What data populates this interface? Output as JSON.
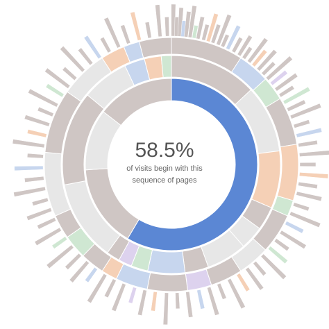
{
  "chart_data": {
    "type": "sunburst",
    "center_label": {
      "percentage": "58.5%",
      "line1": "of visits begin with this",
      "line2": "sequence of pages"
    },
    "highlighted_path_value": 58.5,
    "colors": {
      "highlight": "#5b87d4",
      "default": "#cfc6c4",
      "light_ring": "#e7e7e7",
      "blue": "#c7d6ee",
      "peach": "#f5d0b6",
      "green": "#cfe7d2",
      "purple": "#ddd2ee",
      "gray": "#dadada"
    },
    "rings": [
      {
        "depth": 1,
        "segments": [
          {
            "value": 58.5,
            "color": "highlight"
          },
          {
            "value": 15.5,
            "color": "default"
          },
          {
            "value": 11.5,
            "color": "light_ring"
          },
          {
            "value": 14.5,
            "color": "default"
          }
        ]
      },
      {
        "depth": 2,
        "segments": [
          {
            "value": 13,
            "color": "default"
          },
          {
            "value": 10,
            "color": "light_ring"
          },
          {
            "value": 8.5,
            "color": "peach"
          },
          {
            "value": 3.5,
            "color": "default"
          },
          {
            "value": 3.5,
            "color": "light_ring"
          },
          {
            "value": 6,
            "color": "light_ring"
          },
          {
            "value": 3.5,
            "color": "default"
          },
          {
            "value": 5.5,
            "color": "blue"
          },
          {
            "value": 2.5,
            "color": "green"
          },
          {
            "value": 2,
            "color": "purple"
          },
          {
            "value": 2,
            "color": "default"
          },
          {
            "value": 12,
            "color": "light_ring"
          },
          {
            "value": 14,
            "color": "default"
          },
          {
            "value": 7,
            "color": "light_ring"
          },
          {
            "value": 3,
            "color": "blue"
          },
          {
            "value": 2.5,
            "color": "peach"
          },
          {
            "value": 1.5,
            "color": "green"
          }
        ]
      },
      {
        "depth": 3,
        "segments": [
          {
            "value": 9,
            "color": "default"
          },
          {
            "value": 4,
            "color": "blue"
          },
          {
            "value": 3,
            "color": "green"
          },
          {
            "value": 6,
            "color": "default"
          },
          {
            "value": 7,
            "color": "peach"
          },
          {
            "value": 2,
            "color": "green"
          },
          {
            "value": 5,
            "color": "default"
          },
          {
            "value": 4,
            "color": "light_ring"
          },
          {
            "value": 4,
            "color": "default"
          },
          {
            "value": 3,
            "color": "purple"
          },
          {
            "value": 5,
            "color": "default"
          },
          {
            "value": 4,
            "color": "blue"
          },
          {
            "value": 2,
            "color": "peach"
          },
          {
            "value": 3,
            "color": "default"
          },
          {
            "value": 3,
            "color": "green"
          },
          {
            "value": 3,
            "color": "default"
          },
          {
            "value": 8,
            "color": "light_ring"
          },
          {
            "value": 8,
            "color": "default"
          },
          {
            "value": 6,
            "color": "light_ring"
          },
          {
            "value": 3,
            "color": "peach"
          },
          {
            "value": 2,
            "color": "blue"
          },
          {
            "value": 4,
            "color": "default"
          }
        ]
      }
    ],
    "outer_spikes": [
      {
        "pos": 0.2,
        "len": 1.0,
        "color": "default"
      },
      {
        "pos": 0.6,
        "len": 0.6,
        "color": "default"
      },
      {
        "pos": 1.0,
        "len": 0.9,
        "color": "default"
      },
      {
        "pos": 1.4,
        "len": 0.5,
        "color": "blue"
      },
      {
        "pos": 1.8,
        "len": 0.8,
        "color": "default"
      },
      {
        "pos": 2.3,
        "len": 1.0,
        "color": "default"
      },
      {
        "pos": 2.8,
        "len": 0.4,
        "color": "green"
      },
      {
        "pos": 3.3,
        "len": 0.7,
        "color": "default"
      },
      {
        "pos": 4.0,
        "len": 0.5,
        "color": "default"
      },
      {
        "pos": 4.6,
        "len": 0.9,
        "color": "peach"
      },
      {
        "pos": 5.2,
        "len": 0.6,
        "color": "default"
      },
      {
        "pos": 5.9,
        "len": 1.0,
        "color": "default"
      },
      {
        "pos": 6.5,
        "len": 0.4,
        "color": "default"
      },
      {
        "pos": 7.2,
        "len": 0.8,
        "color": "blue"
      },
      {
        "pos": 8.0,
        "len": 0.5,
        "color": "default"
      },
      {
        "pos": 8.8,
        "len": 0.7,
        "color": "default"
      },
      {
        "pos": 9.5,
        "len": 0.4,
        "color": "default"
      },
      {
        "pos": 10.3,
        "len": 0.9,
        "color": "default"
      },
      {
        "pos": 11.0,
        "len": 0.6,
        "color": "peach"
      },
      {
        "pos": 11.8,
        "len": 0.8,
        "color": "default"
      },
      {
        "pos": 12.6,
        "len": 0.5,
        "color": "default"
      },
      {
        "pos": 13.4,
        "len": 1.0,
        "color": "default"
      },
      {
        "pos": 14.2,
        "len": 0.6,
        "color": "purple"
      },
      {
        "pos": 15.1,
        "len": 0.8,
        "color": "default"
      },
      {
        "pos": 16.0,
        "len": 0.5,
        "color": "default"
      },
      {
        "pos": 17.0,
        "len": 0.9,
        "color": "green"
      },
      {
        "pos": 18.0,
        "len": 0.6,
        "color": "default"
      },
      {
        "pos": 19.0,
        "len": 1.0,
        "color": "default"
      },
      {
        "pos": 20.2,
        "len": 0.5,
        "color": "default"
      },
      {
        "pos": 21.4,
        "len": 0.8,
        "color": "blue"
      },
      {
        "pos": 22.6,
        "len": 0.6,
        "color": "default"
      },
      {
        "pos": 23.8,
        "len": 1.0,
        "color": "default"
      },
      {
        "pos": 25.0,
        "len": 0.5,
        "color": "default"
      },
      {
        "pos": 26.2,
        "len": 0.9,
        "color": "peach"
      },
      {
        "pos": 27.4,
        "len": 0.6,
        "color": "default"
      },
      {
        "pos": 28.6,
        "len": 0.8,
        "color": "default"
      },
      {
        "pos": 30.0,
        "len": 0.5,
        "color": "default"
      },
      {
        "pos": 31.2,
        "len": 1.0,
        "color": "default"
      },
      {
        "pos": 32.5,
        "len": 0.6,
        "color": "blue"
      },
      {
        "pos": 33.8,
        "len": 0.9,
        "color": "default"
      },
      {
        "pos": 35.0,
        "len": 0.5,
        "color": "default"
      },
      {
        "pos": 36.2,
        "len": 0.7,
        "color": "green"
      },
      {
        "pos": 37.5,
        "len": 1.0,
        "color": "default"
      },
      {
        "pos": 38.8,
        "len": 0.5,
        "color": "default"
      },
      {
        "pos": 40.0,
        "len": 0.8,
        "color": "default"
      },
      {
        "pos": 41.3,
        "len": 0.6,
        "color": "peach"
      },
      {
        "pos": 42.6,
        "len": 1.0,
        "color": "default"
      },
      {
        "pos": 44.0,
        "len": 0.5,
        "color": "default"
      },
      {
        "pos": 45.3,
        "len": 0.9,
        "color": "default"
      },
      {
        "pos": 46.6,
        "len": 0.6,
        "color": "blue"
      },
      {
        "pos": 48.0,
        "len": 0.8,
        "color": "default"
      },
      {
        "pos": 49.3,
        "len": 0.5,
        "color": "default"
      },
      {
        "pos": 50.6,
        "len": 1.0,
        "color": "default"
      },
      {
        "pos": 52.0,
        "len": 0.6,
        "color": "peach"
      },
      {
        "pos": 53.3,
        "len": 0.8,
        "color": "default"
      },
      {
        "pos": 54.6,
        "len": 0.5,
        "color": "purple"
      },
      {
        "pos": 56.0,
        "len": 0.9,
        "color": "default"
      },
      {
        "pos": 57.3,
        "len": 0.6,
        "color": "default"
      },
      {
        "pos": 58.6,
        "len": 1.0,
        "color": "default"
      },
      {
        "pos": 60.0,
        "len": 0.5,
        "color": "blue"
      },
      {
        "pos": 61.3,
        "len": 0.8,
        "color": "default"
      },
      {
        "pos": 62.6,
        "len": 0.6,
        "color": "default"
      },
      {
        "pos": 64.0,
        "len": 1.0,
        "color": "default"
      },
      {
        "pos": 65.3,
        "len": 0.5,
        "color": "green"
      },
      {
        "pos": 66.6,
        "len": 0.9,
        "color": "default"
      },
      {
        "pos": 68.0,
        "len": 0.6,
        "color": "default"
      },
      {
        "pos": 69.3,
        "len": 0.8,
        "color": "default"
      },
      {
        "pos": 70.6,
        "len": 0.5,
        "color": "default"
      },
      {
        "pos": 72.0,
        "len": 1.0,
        "color": "default"
      },
      {
        "pos": 73.3,
        "len": 0.6,
        "color": "default"
      },
      {
        "pos": 74.6,
        "len": 0.9,
        "color": "blue"
      },
      {
        "pos": 76.0,
        "len": 0.5,
        "color": "default"
      },
      {
        "pos": 77.3,
        "len": 1.0,
        "color": "default"
      },
      {
        "pos": 78.6,
        "len": 0.6,
        "color": "peach"
      },
      {
        "pos": 80.0,
        "len": 0.8,
        "color": "default"
      },
      {
        "pos": 81.3,
        "len": 0.5,
        "color": "default"
      },
      {
        "pos": 82.6,
        "len": 1.0,
        "color": "default"
      },
      {
        "pos": 84.0,
        "len": 0.6,
        "color": "green"
      },
      {
        "pos": 85.3,
        "len": 0.9,
        "color": "default"
      },
      {
        "pos": 86.6,
        "len": 0.5,
        "color": "default"
      },
      {
        "pos": 88.0,
        "len": 1.0,
        "color": "default"
      },
      {
        "pos": 89.3,
        "len": 0.6,
        "color": "default"
      },
      {
        "pos": 90.6,
        "len": 0.8,
        "color": "blue"
      },
      {
        "pos": 92.0,
        "len": 0.5,
        "color": "default"
      },
      {
        "pos": 93.3,
        "len": 1.0,
        "color": "default"
      },
      {
        "pos": 94.6,
        "len": 0.6,
        "color": "default"
      },
      {
        "pos": 96.0,
        "len": 0.9,
        "color": "peach"
      },
      {
        "pos": 97.3,
        "len": 0.5,
        "color": "default"
      },
      {
        "pos": 98.6,
        "len": 1.0,
        "color": "default"
      },
      {
        "pos": 99.5,
        "len": 0.6,
        "color": "default"
      }
    ]
  }
}
